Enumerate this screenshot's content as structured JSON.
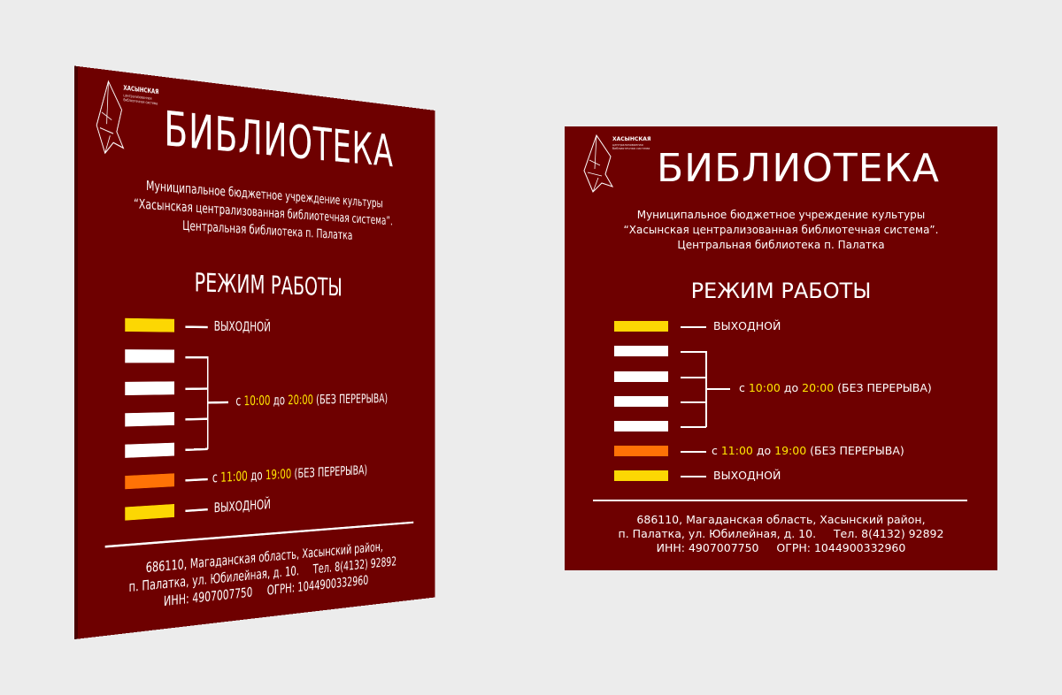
{
  "colors": {
    "sign_bg": "#6e0000",
    "weekend": "#fcd703",
    "workday": "#ffffff",
    "short_day": "#ff7206",
    "time_highlight": "#ffe600"
  },
  "logo": {
    "name": "ХАСЫНСКАЯ",
    "sub": "централизованная библиотечная система"
  },
  "title": "БИБЛИОТЕКА",
  "subtitle": [
    "Муниципальное бюджетное учреждение культуры",
    "“Хасынская централизованная библиотечная система”.",
    "Центральная библиотека п. Палатка"
  ],
  "schedule_title": "РЕЖИМ РАБОТЫ",
  "schedule": {
    "day_off": "ВЫХОДНОЙ",
    "regular": {
      "from_word": "с",
      "from": "10:00",
      "to_word": "до",
      "to": "20:00",
      "note": "(БЕЗ ПЕРЕРЫВА)"
    },
    "short": {
      "from_word": "с",
      "from": "11:00",
      "to_word": "до",
      "to": "19:00",
      "note": "(БЕЗ ПЕРЕРЫВА)"
    }
  },
  "address": [
    "686110, Магаданская область, Хасынский район,",
    "п. Палатка, ул. Юбилейная, д. 10.     Тел. 8(4132) 92892",
    "ИНН: 4907007750     ОГРН: 1044900332960"
  ]
}
